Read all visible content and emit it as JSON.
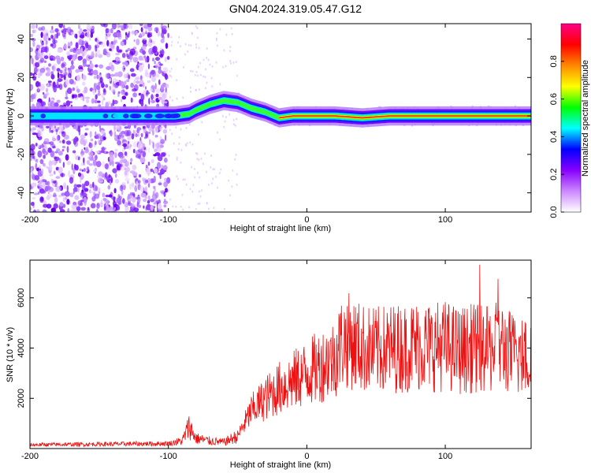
{
  "title": "GN04.2024.319.05.47.G12",
  "chart_data": [
    {
      "type": "heatmap",
      "xlabel": "Height of straight line (km)",
      "ylabel": "Frequency (Hz)",
      "xlim": [
        -200,
        162
      ],
      "ylim": [
        -50,
        48
      ],
      "x_ticks": [
        "-200",
        "-100",
        "0",
        "100"
      ],
      "y_ticks": [
        "40",
        "20",
        "0",
        "-20",
        "-40"
      ],
      "colorbar": {
        "label": "Normalized spectral amplitude",
        "range": [
          0.0,
          1.0
        ],
        "ticks": [
          "0.0",
          "0.2",
          "0.4",
          "0.6",
          "0.8"
        ],
        "colors": [
          "#ffffff",
          "#cc88ff",
          "#8800ff",
          "#0000ff",
          "#00ffff",
          "#00ff00",
          "#ffff00",
          "#ff8800",
          "#ff0000",
          "#ff0088"
        ]
      },
      "ridge": {
        "description_points_x": [
          -200,
          -100,
          -95,
          -85,
          -80,
          -70,
          -60,
          -50,
          -40,
          -30,
          -20,
          -10,
          0,
          20,
          40,
          60,
          80,
          100,
          120,
          140,
          162
        ],
        "description_points_y": [
          0,
          0,
          0,
          1,
          3,
          6,
          8,
          7,
          4,
          2,
          -1,
          0,
          0,
          0,
          -1,
          0,
          0,
          0,
          0,
          0,
          0
        ]
      }
    },
    {
      "type": "line",
      "xlabel": "Height of straight line (km)",
      "ylabel": "SNR (10 * v/v)",
      "xlim": [
        -200,
        162
      ],
      "ylim": [
        0,
        7500
      ],
      "x_ticks": [
        "-200",
        "-100",
        "0",
        "100"
      ],
      "y_ticks": [
        "6000",
        "4000",
        "2000"
      ],
      "color": "#ee1111",
      "envelope_x": [
        -200,
        -100,
        -90,
        -85,
        -80,
        -70,
        -60,
        -50,
        -45,
        -40,
        -30,
        -20,
        -10,
        0,
        10,
        20,
        25,
        30,
        40,
        50,
        60,
        70,
        80,
        90,
        100,
        110,
        120,
        130,
        140,
        150,
        162
      ],
      "envelope_y": [
        150,
        200,
        300,
        900,
        400,
        300,
        250,
        500,
        1000,
        1500,
        2000,
        2400,
        2700,
        3000,
        3300,
        3600,
        4200,
        4300,
        4000,
        3900,
        4000,
        4000,
        4100,
        4050,
        4100,
        3900,
        4000,
        3900,
        4100,
        3700,
        3600
      ]
    }
  ]
}
